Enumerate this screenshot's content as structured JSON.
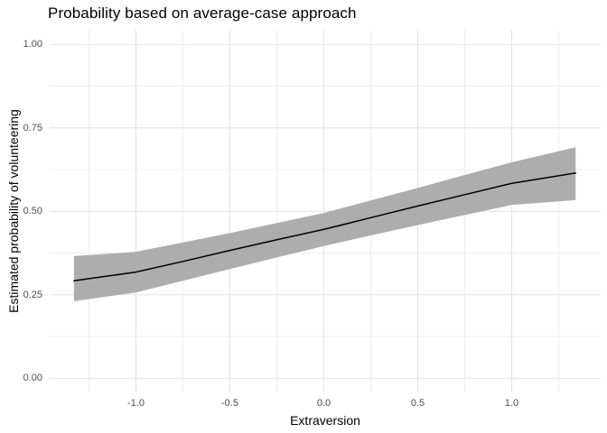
{
  "chart_data": {
    "type": "line",
    "title": "Probability based on average-case approach",
    "xlabel": "Extraversion",
    "ylabel": "Estimated probability of volunteering",
    "legend": "none",
    "grid": "major+minor",
    "xlim": [
      -1.459,
      1.474
    ],
    "ylim": [
      -0.042,
      1.044
    ],
    "x_ticks": [
      -1.0,
      -0.5,
      0.0,
      0.5,
      1.0
    ],
    "x_tick_labels": [
      "-1.0",
      "-0.5",
      "0.0",
      "0.5",
      "1.0"
    ],
    "x_minor_ticks": [
      -1.25,
      -0.75,
      -0.25,
      0.25,
      0.75,
      1.25
    ],
    "y_ticks": [
      0.0,
      0.25,
      0.5,
      0.75,
      1.0
    ],
    "y_tick_labels": [
      "0.00",
      "0.25",
      "0.50",
      "0.75",
      "1.00"
    ],
    "y_minor_ticks": [
      0.125,
      0.375,
      0.625,
      0.875
    ],
    "x": [
      -1.33,
      -1.0,
      -0.75,
      -0.5,
      -0.25,
      0.0,
      0.25,
      0.5,
      0.75,
      1.0,
      1.34
    ],
    "series": [
      {
        "name": "fitted_probability",
        "values": [
          0.292,
          0.318,
          0.35,
          0.383,
          0.415,
          0.446,
          0.481,
          0.516,
          0.55,
          0.584,
          0.615
        ]
      },
      {
        "name": "ci_lower",
        "values": [
          0.231,
          0.257,
          0.292,
          0.327,
          0.362,
          0.396,
          0.428,
          0.459,
          0.489,
          0.519,
          0.534
        ]
      },
      {
        "name": "ci_upper",
        "values": [
          0.366,
          0.379,
          0.407,
          0.435,
          0.465,
          0.495,
          0.533,
          0.57,
          0.609,
          0.647,
          0.692
        ]
      }
    ],
    "colors": {
      "line": "#000000",
      "ribbon": "#adadad",
      "grid_major": "#e2e2e2",
      "grid_minor": "#efefef",
      "tick_text": "#4d4d4d",
      "title_text": "#000000",
      "background": "#ffffff"
    }
  }
}
